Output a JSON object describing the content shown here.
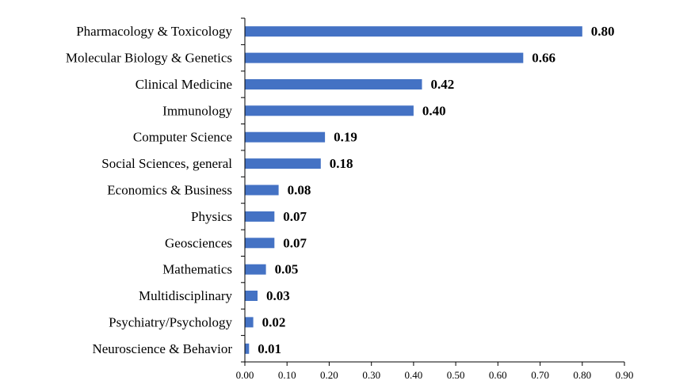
{
  "chart_data": {
    "type": "bar",
    "orientation": "horizontal",
    "categories": [
      "Pharmacology & Toxicology",
      "Molecular Biology & Genetics",
      "Clinical Medicine",
      "Immunology",
      "Computer Science",
      "Social Sciences, general",
      "Economics & Business",
      "Physics",
      "Geosciences",
      "Mathematics",
      "Multidisciplinary",
      "Psychiatry/Psychology",
      "Neuroscience & Behavior"
    ],
    "values": [
      0.8,
      0.66,
      0.42,
      0.4,
      0.19,
      0.18,
      0.08,
      0.07,
      0.07,
      0.05,
      0.03,
      0.02,
      0.01
    ],
    "value_labels": [
      "0.80",
      "0.66",
      "0.42",
      "0.40",
      "0.19",
      "0.18",
      "0.08",
      "0.07",
      "0.07",
      "0.05",
      "0.03",
      "0.02",
      "0.01"
    ],
    "xlim": [
      0,
      0.9
    ],
    "x_ticks": [
      "0.00",
      "0.10",
      "0.20",
      "0.30",
      "0.40",
      "0.50",
      "0.60",
      "0.70",
      "0.80",
      "0.90"
    ],
    "bar_color": "#4472C4",
    "grid": false,
    "title": "",
    "xlabel": "",
    "ylabel": ""
  }
}
